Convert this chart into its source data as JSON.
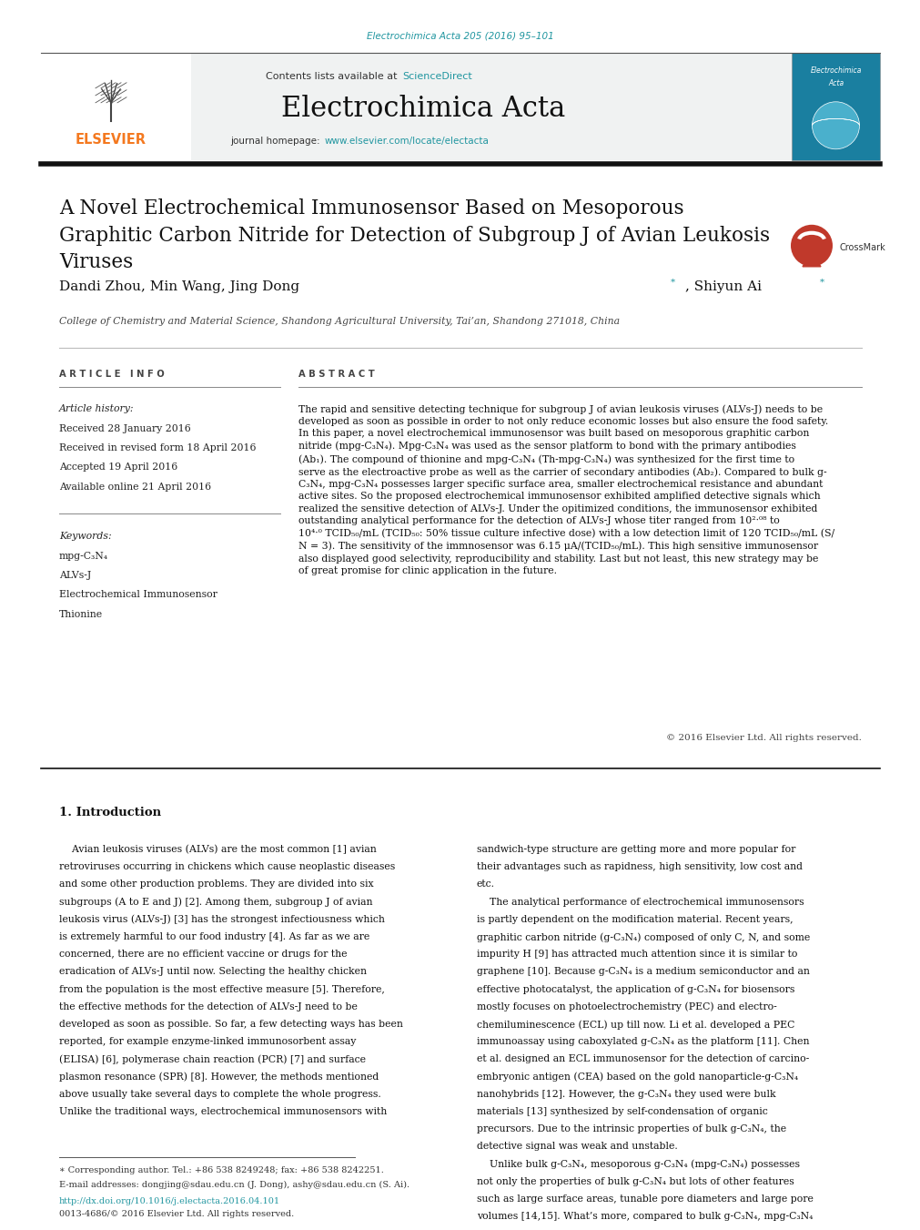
{
  "page_width": 9.92,
  "page_height": 13.23,
  "background_color": "#ffffff",
  "top_citation": "Electrochimica Acta 205 (2016) 95–101",
  "journal_name": "Electrochimica Acta",
  "contents_text": "Contents lists available at ",
  "sciencedirect_text": "ScienceDirect",
  "journal_homepage_text": "journal homepage: ",
  "journal_url": "www.elsevier.com/locate/electacta",
  "header_bg": "#f0f2f2",
  "title_text": "A Novel Electrochemical Immunosensor Based on Mesoporous\nGraphitic Carbon Nitride for Detection of Subgroup J of Avian Leukosis\nViruses",
  "authors_part1": "Dandi Zhou, Min Wang, Jing Dong",
  "authors_part2": ", Shiyun Ai",
  "affiliation": "College of Chemistry and Material Science, Shandong Agricultural University, Tai’an, Shandong 271018, China",
  "article_info_header": "A R T I C L E   I N F O",
  "abstract_header": "A B S T R A C T",
  "article_history_label": "Article history:",
  "received": "Received 28 January 2016",
  "revised": "Received in revised form 18 April 2016",
  "accepted": "Accepted 19 April 2016",
  "online": "Available online 21 April 2016",
  "keywords_label": "Keywords:",
  "keywords": [
    "mpg-C₃N₄",
    "ALVs-J",
    "Electrochemical Immunosensor",
    "Thionine"
  ],
  "abstract_text": "The rapid and sensitive detecting technique for subgroup J of avian leukosis viruses (ALVs-J) needs to be\ndeveloped as soon as possible in order to not only reduce economic losses but also ensure the food safety.\nIn this paper, a novel electrochemical immunosensor was built based on mesoporous graphitic carbon\nnitride (mpg-C₃N₄). Mpg-C₃N₄ was used as the sensor platform to bond with the primary antibodies\n(Ab₁). The compound of thionine and mpg-C₃N₄ (Th-mpg-C₃N₄) was synthesized for the first time to\nserve as the electroactive probe as well as the carrier of secondary antibodies (Ab₂). Compared to bulk g-\nC₃N₄, mpg-C₃N₄ possesses larger specific surface area, smaller electrochemical resistance and abundant\nactive sites. So the proposed electrochemical immunosensor exhibited amplified detective signals which\nrealized the sensitive detection of ALVs-J. Under the opitimized conditions, the immunosensor exhibited\noutstanding analytical performance for the detection of ALVs-J whose titer ranged from 10²·⁰⁸ to\n10⁴·⁰ TCID₅₀/mL (TCID₅₀: 50% tissue culture infective dose) with a low detection limit of 120 TCID₅₀/mL (S/\nN = 3). The sensitivity of the immnosensor was 6.15 μA/(TCID₅₀/mL). This high sensitive immunosensor\nalso displayed good selectivity, reproducibility and stability. Last but not least, this new strategy may be\nof great promise for clinic application in the future.",
  "copyright": "© 2016 Elsevier Ltd. All rights reserved.",
  "intro_header": "1. Introduction",
  "intro_col1_lines": [
    "    Avian leukosis viruses (ALVs) are the most common [1] avian",
    "retroviruses occurring in chickens which cause neoplastic diseases",
    "and some other production problems. They are divided into six",
    "subgroups (A to E and J) [2]. Among them, subgroup J of avian",
    "leukosis virus (ALVs-J) [3] has the strongest infectiousness which",
    "is extremely harmful to our food industry [4]. As far as we are",
    "concerned, there are no efficient vaccine or drugs for the",
    "eradication of ALVs-J until now. Selecting the healthy chicken",
    "from the population is the most effective measure [5]. Therefore,",
    "the effective methods for the detection of ALVs-J need to be",
    "developed as soon as possible. So far, a few detecting ways has been",
    "reported, for example enzyme-linked immunosorbent assay",
    "(ELISA) [6], polymerase chain reaction (PCR) [7] and surface",
    "plasmon resonance (SPR) [8]. However, the methods mentioned",
    "above usually take several days to complete the whole progress.",
    "Unlike the traditional ways, electrochemical immunosensors with"
  ],
  "intro_col2_lines": [
    "sandwich-type structure are getting more and more popular for",
    "their advantages such as rapidness, high sensitivity, low cost and",
    "etc.",
    "    The analytical performance of electrochemical immunosensors",
    "is partly dependent on the modification material. Recent years,",
    "graphitic carbon nitride (g-C₃N₄) composed of only C, N, and some",
    "impurity H [9] has attracted much attention since it is similar to",
    "graphene [10]. Because g-C₃N₄ is a medium semiconductor and an",
    "effective photocatalyst, the application of g-C₃N₄ for biosensors",
    "mostly focuses on photoelectrochemistry (PEC) and electro-",
    "chemiluminescence (ECL) up till now. Li et al. developed a PEC",
    "immunoassay using caboxylated g-C₃N₄ as the platform [11]. Chen",
    "et al. designed an ECL immunosensor for the detection of carcino-",
    "embryonic antigen (CEA) based on the gold nanoparticle-g-C₃N₄",
    "nanohybrids [12]. However, the g-C₃N₄ they used were bulk",
    "materials [13] synthesized by self-condensation of organic",
    "precursors. Due to the intrinsic properties of bulk g-C₃N₄, the",
    "detective signal was weak and unstable.",
    "    Unlike bulk g-C₃N₄, mesoporous g-C₃N₄ (mpg-C₃N₄) possesses",
    "not only the properties of bulk g-C₃N₄ but lots of other features",
    "such as large surface areas, tunable pore diameters and large pore",
    "volumes [14,15]. What’s more, compared to bulk g-C₃N₄, mpg-C₃N₄"
  ],
  "link_color": "#2196a0",
  "elsevier_orange": "#f47920",
  "footnote_line1": "∗ Corresponding author. Tel.: +86 538 8249248; fax: +86 538 8242251.",
  "footnote_line2": "E-mail addresses: dongjing@sdau.edu.cn (J. Dong), ashy@sdau.edu.cn (S. Ai).",
  "doi_text": "http://dx.doi.org/10.1016/j.electacta.2016.04.101",
  "issn_text": "0013-4686/© 2016 Elsevier Ltd. All rights reserved."
}
